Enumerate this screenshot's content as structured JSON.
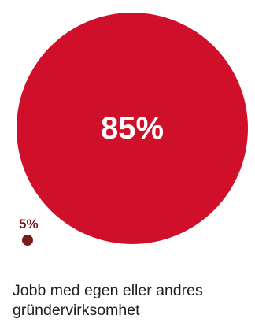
{
  "chart_data": {
    "type": "bubble",
    "title": "",
    "items": [
      {
        "value": 85,
        "label": "85%",
        "color": "#d0102b"
      },
      {
        "value": 5,
        "label": "5%",
        "color": "#7a1b1f"
      }
    ]
  },
  "caption": "Jobb med egen eller andres gründervirksomhet"
}
